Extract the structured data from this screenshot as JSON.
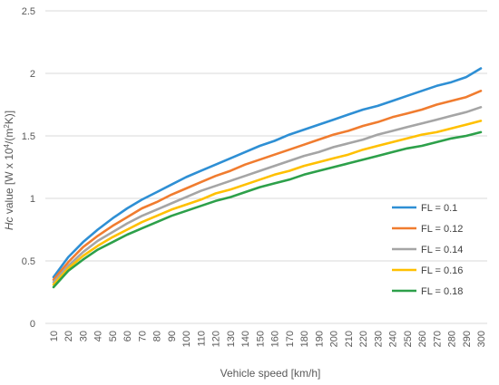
{
  "chart_data": {
    "type": "line",
    "title": "",
    "xlabel": "Vehicle speed [km/h]",
    "ylabel": "Hc value [W x 10⁴/(m²K)]",
    "ylabel_parts": {
      "italic": "Hc",
      "rest": " value [W x 10",
      "sup1": "4",
      "mid": "/(m",
      "sup2": "2",
      "end": "K)]"
    },
    "ylim": [
      0,
      2.5
    ],
    "yticks": [
      "0",
      "0.5",
      "1",
      "1.5",
      "2",
      "2.5"
    ],
    "ytick_values": [
      0,
      0.5,
      1,
      1.5,
      2,
      2.5
    ],
    "x": [
      10,
      20,
      30,
      40,
      50,
      60,
      70,
      80,
      90,
      100,
      110,
      120,
      130,
      140,
      150,
      160,
      170,
      180,
      190,
      200,
      210,
      220,
      230,
      240,
      250,
      260,
      270,
      280,
      290,
      300
    ],
    "xtick_labels": [
      "10",
      "20",
      "30",
      "40",
      "50",
      "60",
      "70",
      "80",
      "90",
      "100",
      "110",
      "120",
      "130",
      "140",
      "150",
      "160",
      "170",
      "180",
      "190",
      "200",
      "210",
      "220",
      "230",
      "240",
      "250",
      "260",
      "270",
      "280",
      "290",
      "300"
    ],
    "grid": true,
    "legend_position": "right",
    "series": [
      {
        "name": "FL = 0.1",
        "color": "#2e8fd4",
        "values": [
          0.37,
          0.53,
          0.65,
          0.75,
          0.84,
          0.92,
          0.99,
          1.05,
          1.11,
          1.17,
          1.22,
          1.27,
          1.32,
          1.37,
          1.42,
          1.46,
          1.51,
          1.55,
          1.59,
          1.63,
          1.67,
          1.71,
          1.74,
          1.78,
          1.82,
          1.86,
          1.9,
          1.93,
          1.97,
          2.04
        ]
      },
      {
        "name": "FL = 0.12",
        "color": "#f07c2f",
        "values": [
          0.35,
          0.49,
          0.61,
          0.7,
          0.78,
          0.85,
          0.92,
          0.97,
          1.03,
          1.08,
          1.13,
          1.18,
          1.22,
          1.27,
          1.31,
          1.35,
          1.39,
          1.43,
          1.47,
          1.51,
          1.54,
          1.58,
          1.61,
          1.65,
          1.68,
          1.71,
          1.75,
          1.78,
          1.81,
          1.86
        ]
      },
      {
        "name": "FL = 0.14",
        "color": "#a5a5a5",
        "values": [
          0.33,
          0.46,
          0.57,
          0.66,
          0.73,
          0.8,
          0.86,
          0.91,
          0.96,
          1.01,
          1.06,
          1.1,
          1.14,
          1.18,
          1.22,
          1.26,
          1.3,
          1.34,
          1.37,
          1.41,
          1.44,
          1.47,
          1.51,
          1.54,
          1.57,
          1.6,
          1.63,
          1.66,
          1.69,
          1.73
        ]
      },
      {
        "name": "FL = 0.16",
        "color": "#ffc000",
        "values": [
          0.31,
          0.44,
          0.54,
          0.62,
          0.69,
          0.75,
          0.81,
          0.86,
          0.91,
          0.95,
          0.99,
          1.04,
          1.07,
          1.11,
          1.15,
          1.19,
          1.22,
          1.26,
          1.29,
          1.32,
          1.35,
          1.39,
          1.42,
          1.45,
          1.48,
          1.51,
          1.53,
          1.56,
          1.59,
          1.62
        ]
      },
      {
        "name": "FL = 0.18",
        "color": "#2da04a",
        "values": [
          0.29,
          0.42,
          0.51,
          0.59,
          0.65,
          0.71,
          0.76,
          0.81,
          0.86,
          0.9,
          0.94,
          0.98,
          1.01,
          1.05,
          1.09,
          1.12,
          1.15,
          1.19,
          1.22,
          1.25,
          1.28,
          1.31,
          1.34,
          1.37,
          1.4,
          1.42,
          1.45,
          1.48,
          1.5,
          1.53
        ]
      }
    ]
  }
}
